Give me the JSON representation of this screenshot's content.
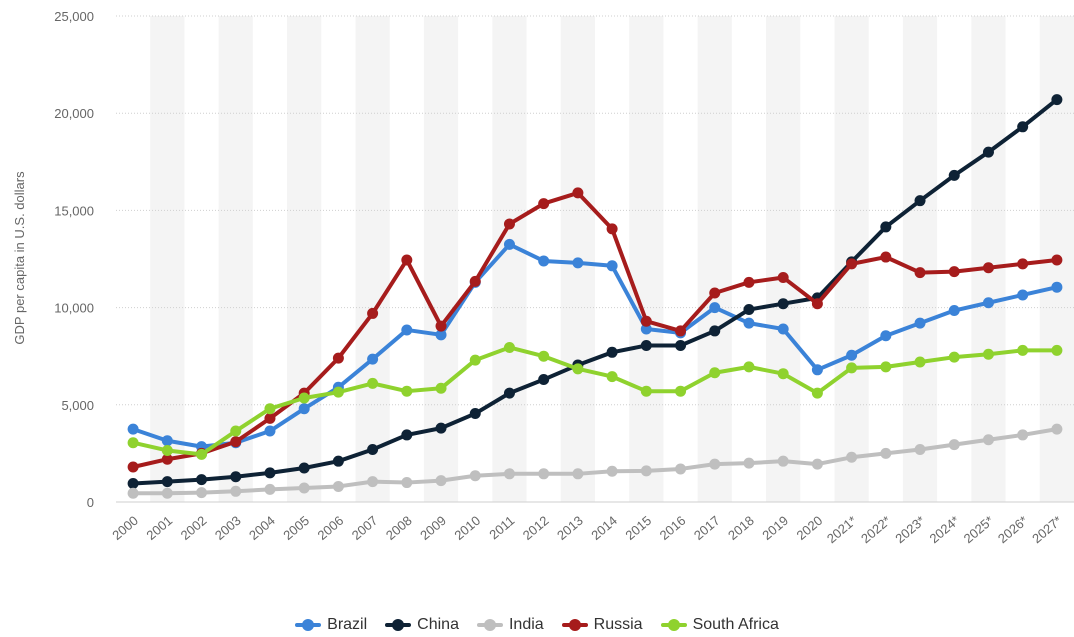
{
  "chart_data": {
    "type": "line",
    "title": "",
    "xlabel": "",
    "ylabel": "GDP per capita in U.S. dollars",
    "ylim": [
      0,
      25000
    ],
    "yticks": [
      0,
      5000,
      10000,
      15000,
      20000,
      25000
    ],
    "ytick_labels": [
      "0",
      "5,000",
      "10,000",
      "15,000",
      "20,000",
      "25,000"
    ],
    "grid": true,
    "legend_position": "bottom",
    "categories": [
      "2000",
      "2001",
      "2002",
      "2003",
      "2004",
      "2005",
      "2006",
      "2007",
      "2008",
      "2009",
      "2010",
      "2011",
      "2012",
      "2013",
      "2014",
      "2015",
      "2016",
      "2017",
      "2018",
      "2019",
      "2020",
      "2021*",
      "2022*",
      "2023*",
      "2024*",
      "2025*",
      "2026*",
      "2027*"
    ],
    "series": [
      {
        "name": "Brazil",
        "color": "#3b83d8",
        "values": [
          3750,
          3150,
          2850,
          3050,
          3650,
          4800,
          5900,
          7350,
          8850,
          8600,
          11300,
          13250,
          12400,
          12300,
          12150,
          8900,
          8700,
          10000,
          9200,
          8900,
          6800,
          7550,
          8550,
          9200,
          9850,
          10250,
          10650,
          11050
        ]
      },
      {
        "name": "China",
        "color": "#0e2235",
        "values": [
          950,
          1050,
          1150,
          1300,
          1500,
          1750,
          2100,
          2700,
          3450,
          3800,
          4550,
          5600,
          6300,
          7050,
          7700,
          8050,
          8050,
          8800,
          9900,
          10200,
          10500,
          12350,
          14150,
          15500,
          16800,
          18000,
          19300,
          20700
        ]
      },
      {
        "name": "India",
        "color": "#bfbfbf",
        "values": [
          450,
          450,
          480,
          550,
          650,
          720,
          800,
          1050,
          1000,
          1100,
          1350,
          1450,
          1450,
          1450,
          1580,
          1600,
          1700,
          1950,
          2000,
          2100,
          1950,
          2300,
          2500,
          2700,
          2950,
          3200,
          3450,
          3750
        ]
      },
      {
        "name": "Russia",
        "color": "#a61c1c",
        "values": [
          1800,
          2200,
          2500,
          3100,
          4300,
          5600,
          7400,
          9700,
          12450,
          9050,
          11350,
          14300,
          15350,
          15900,
          14050,
          9300,
          8800,
          10750,
          11300,
          11550,
          10200,
          12250,
          12600,
          11800,
          11850,
          12050,
          12250,
          12450
        ]
      },
      {
        "name": "South Africa",
        "color": "#8fd22e",
        "values": [
          3050,
          2650,
          2450,
          3650,
          4800,
          5350,
          5650,
          6100,
          5700,
          5850,
          7300,
          7950,
          7500,
          6850,
          6450,
          5700,
          5700,
          6650,
          6950,
          6600,
          5600,
          6900,
          6950,
          7200,
          7450,
          7600,
          7800,
          7800
        ]
      }
    ]
  }
}
